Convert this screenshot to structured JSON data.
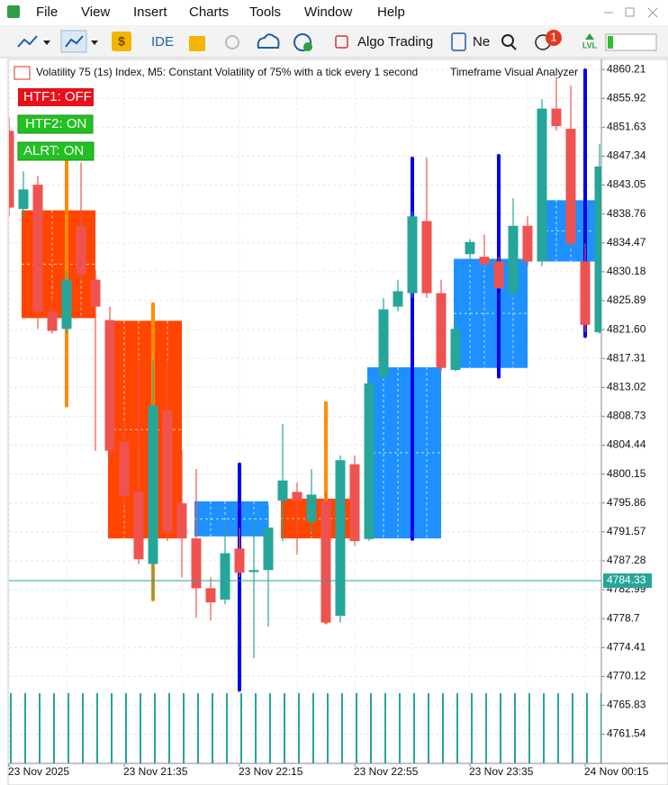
{
  "menu": [
    "File",
    "View",
    "Insert",
    "Charts",
    "Tools",
    "Window",
    "Help"
  ],
  "toolbar": {
    "ide": "IDE",
    "algo_trading": "Algo Trading",
    "new_order": "Ne",
    "notifications": 1,
    "level": "LVL"
  },
  "chart_header": {
    "symbol_info": "Volatility 75 (1s) Index, M5:  Constant Volatility of 75% with a tick every 1 second",
    "indicator": "Timeframe Visual Analyzer"
  },
  "buttons": [
    "HTF1: OFF",
    "HTF2: ON",
    "ALRT: ON"
  ],
  "chart_data": {
    "type": "candlestick",
    "categories": [
      "23 Nov 2025",
      null,
      null,
      null,
      null,
      null,
      null,
      null,
      "23 Nov 21:35",
      null,
      null,
      null,
      null,
      null,
      null,
      null,
      "23 Nov 22:15",
      null,
      null,
      null,
      null,
      null,
      null,
      null,
      "23 Nov 22:55",
      null,
      null,
      null,
      null,
      null,
      null,
      null,
      "23 Nov 23:35",
      null,
      null,
      null,
      null,
      null,
      null,
      null,
      "24 Nov 00:15",
      null
    ],
    "open": [
      4851.1,
      4839.5,
      4843.1,
      4824.3,
      4821.7,
      4837.0,
      4829.0,
      4823.0,
      4804.9,
      4797.5,
      4786.8,
      4809.6,
      4795.8,
      4790.6,
      4783.2,
      4781.5,
      4789.1,
      4785.6,
      4785.9,
      4796.2,
      4797.5,
      4793.1,
      4796.2,
      4779.1,
      4801.6,
      4790.5,
      4814.6,
      4825.0,
      4827.0,
      4837.7,
      4827.0,
      4815.6,
      4832.8,
      4832.4,
      4831.7,
      4827.0,
      4837.0,
      4831.7,
      4854.4,
      4851.4,
      4831.7,
      4821.2
    ],
    "high": [
      4853.1,
      4845.1,
      4844.4,
      4826.3,
      4830.4,
      4846.4,
      4830.4,
      4825.0,
      4807.6,
      4817.0,
      4817.0,
      4817.0,
      4803.6,
      4800.9,
      4784.8,
      4792.9,
      4792.2,
      4794.2,
      4795.5,
      4807.6,
      4798.9,
      4800.9,
      4797.5,
      4802.9,
      4802.9,
      4814.3,
      4826.3,
      4829.0,
      4839.1,
      4847.1,
      4829.0,
      4823.7,
      4835.0,
      4835.7,
      4832.4,
      4841.1,
      4838.4,
      4855.8,
      4859.1,
      4857.8,
      4834.4,
      4849.1
    ],
    "low": [
      4838.4,
      4838.4,
      4821.7,
      4821.0,
      4821.0,
      4829.0,
      4803.6,
      4802.2,
      4795.5,
      4786.8,
      4781.5,
      4790.2,
      4784.8,
      4778.8,
      4778.4,
      4780.8,
      4784.8,
      4772.8,
      4777.5,
      4790.2,
      4788.2,
      4791.5,
      4778.1,
      4778.1,
      4789.5,
      4790.2,
      4814.3,
      4824.3,
      4826.3,
      4826.3,
      4815.4,
      4815.4,
      4831.7,
      4831.0,
      4827.7,
      4826.3,
      4831.0,
      4831.0,
      4851.1,
      4833.7,
      4821.2,
      4821.0
    ],
    "close": [
      4839.7,
      4842.4,
      4824.3,
      4821.4,
      4829.0,
      4829.7,
      4825.0,
      4803.6,
      4796.9,
      4787.5,
      4810.3,
      4791.5,
      4790.6,
      4783.2,
      4781.1,
      4788.4,
      4785.5,
      4785.9,
      4792.2,
      4799.2,
      4796.2,
      4797.1,
      4778.1,
      4802.2,
      4790.2,
      4813.6,
      4824.6,
      4827.3,
      4838.4,
      4827.0,
      4815.9,
      4821.7,
      4834.6,
      4831.3,
      4827.7,
      4837.0,
      4831.7,
      4854.4,
      4851.8,
      4834.4,
      4822.3,
      4845.8
    ],
    "volumes": [
      300,
      300,
      300,
      300,
      300,
      300,
      300,
      300,
      300,
      300,
      300,
      300,
      300,
      300,
      300,
      300,
      300,
      300,
      300,
      300,
      300,
      300,
      300,
      300,
      300,
      300,
      300,
      300,
      300,
      300,
      300,
      300,
      300,
      300,
      300,
      300,
      300,
      300,
      300,
      300,
      300,
      300
    ],
    "up_color": "#26a69a",
    "down_color": "#ef5350",
    "htf": {
      "start": [
        1,
        7,
        13,
        19,
        25,
        31,
        37
      ],
      "open": [
        4839.3,
        4822.9,
        4790.9,
        4796.5,
        4790.6,
        4815.9,
        4831.7
      ],
      "high": [
        4847.8,
        4825.4,
        4801.6,
        4810.7,
        4847.0,
        4847.4,
        4860.1
      ],
      "low": [
        4810.3,
        4781.5,
        4768.1,
        4778.1,
        4790.5,
        4814.6,
        4820.6
      ],
      "close": [
        4823.3,
        4790.6,
        4796.1,
        4790.6,
        4816.0,
        4832.1,
        4840.8
      ],
      "up_color": "#1e90ff",
      "down_color": "#ff4500",
      "up_wick_color": "#0000ee",
      "down_wick_color": "#ff8c00"
    },
    "current_price": 4784.33,
    "current_price_color": "#26a69a",
    "ylim": [
      4757.2,
      4861.7
    ],
    "yticks": [
      4860.21,
      4855.92,
      4851.63,
      4847.34,
      4843.05,
      4838.76,
      4834.47,
      4830.18,
      4825.89,
      {
        "value": 4821.6,
        "label": "4821.60"
      },
      4817.31,
      4813.02,
      4808.73,
      4804.44,
      4800.15,
      4795.86,
      4791.57,
      4787.28,
      4782.99,
      4778.7,
      {
        "value": 4774.41,
        "label": "4774.41"
      },
      4770.12,
      4765.83,
      4761.54
    ],
    "grid": true
  }
}
